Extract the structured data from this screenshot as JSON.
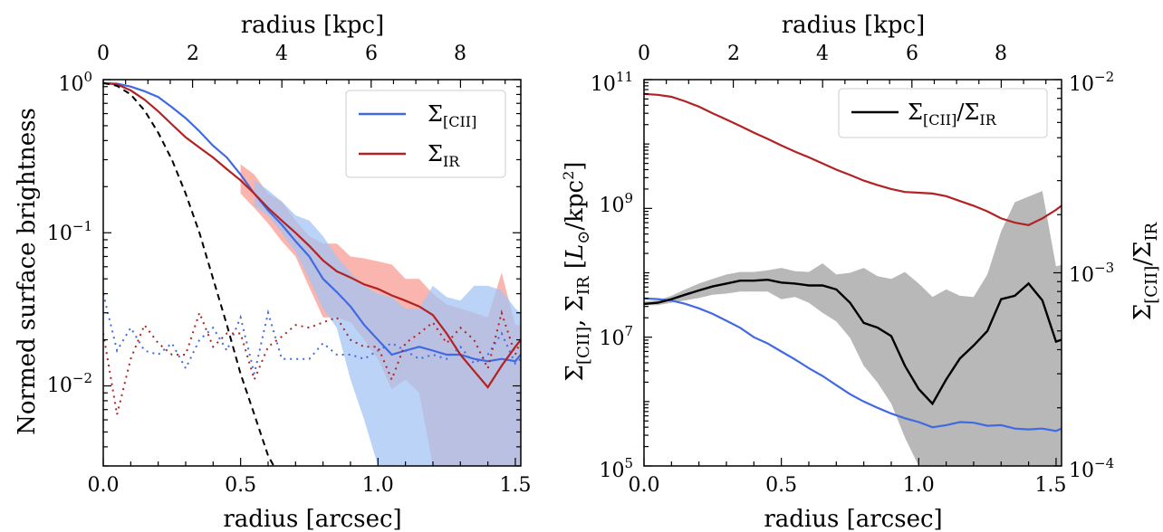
{
  "colors": {
    "cii": "#4169e1",
    "ir": "#b22222",
    "cii_band": "#a3c4f3",
    "ir_band": "#f8a8a0",
    "overlap_band": "#9c9ccf",
    "ratio": "#000000",
    "ratio_band": "#b8b8b8",
    "psf": "#000000"
  },
  "chart_data": [
    {
      "type": "line",
      "xlabel": "radius [arcsec]",
      "top_xlabel": "radius [kpc]",
      "ylabel": "Normed surface brightness",
      "xlim": [
        0,
        1.52
      ],
      "ylim": [
        0.003,
        1.0
      ],
      "yscale": "log",
      "grid": false,
      "legend_position": "top-right",
      "x_ticks": [
        "0.0",
        "0.5",
        "1.0",
        "1.5"
      ],
      "top_x_ticks": [
        "0",
        "2",
        "4",
        "6",
        "8"
      ],
      "y_ticks": [
        "10^0",
        "10^-1",
        "10^-2"
      ],
      "series": [
        {
          "name": "Σ[CII]",
          "style": "solid",
          "color_key": "cii",
          "x": [
            0.0,
            0.05,
            0.1,
            0.15,
            0.2,
            0.25,
            0.3,
            0.35,
            0.4,
            0.45,
            0.5,
            0.55,
            0.6,
            0.65,
            0.7,
            0.75,
            0.8,
            0.85,
            0.9,
            0.95,
            1.0,
            1.05,
            1.1,
            1.15,
            1.2,
            1.25,
            1.3,
            1.35,
            1.4,
            1.45,
            1.5,
            1.52
          ],
          "y": [
            0.95,
            0.94,
            0.9,
            0.84,
            0.77,
            0.66,
            0.56,
            0.46,
            0.37,
            0.31,
            0.24,
            0.18,
            0.14,
            0.113,
            0.088,
            0.07,
            0.05,
            0.041,
            0.033,
            0.025,
            0.02,
            0.016,
            0.017,
            0.018,
            0.017,
            0.016,
            0.016,
            0.015,
            0.0145,
            0.015,
            0.0145,
            0.016
          ]
        },
        {
          "name": "ΣIR",
          "style": "solid",
          "color_key": "ir",
          "x": [
            0.0,
            0.05,
            0.1,
            0.15,
            0.2,
            0.25,
            0.3,
            0.35,
            0.4,
            0.45,
            0.5,
            0.55,
            0.6,
            0.65,
            0.7,
            0.75,
            0.8,
            0.85,
            0.9,
            0.95,
            1.0,
            1.05,
            1.1,
            1.15,
            1.2,
            1.25,
            1.3,
            1.35,
            1.4,
            1.45,
            1.5,
            1.52
          ],
          "y": [
            0.95,
            0.93,
            0.85,
            0.74,
            0.62,
            0.51,
            0.42,
            0.36,
            0.31,
            0.26,
            0.22,
            0.18,
            0.145,
            0.12,
            0.1,
            0.082,
            0.066,
            0.056,
            0.051,
            0.046,
            0.043,
            0.039,
            0.036,
            0.033,
            0.029,
            0.022,
            0.016,
            0.0125,
            0.0098,
            0.0135,
            0.018,
            0.02
          ]
        },
        {
          "name": "",
          "style": "dotted",
          "color_key": "cii",
          "x": [
            0.0,
            0.05,
            0.1,
            0.15,
            0.2,
            0.25,
            0.3,
            0.35,
            0.4,
            0.45,
            0.5,
            0.55,
            0.6,
            0.65,
            0.7,
            0.75,
            0.8,
            0.85,
            0.9,
            0.95,
            1.0,
            1.05,
            1.1,
            1.15,
            1.2,
            1.25,
            1.3,
            1.35,
            1.4,
            1.45,
            1.5,
            1.52
          ],
          "y": [
            0.04,
            0.017,
            0.024,
            0.017,
            0.016,
            0.019,
            0.013,
            0.02,
            0.024,
            0.017,
            0.028,
            0.012,
            0.03,
            0.015,
            0.015,
            0.015,
            0.019,
            0.016,
            0.016,
            0.015,
            0.017,
            0.019,
            0.017,
            0.015,
            0.016,
            0.015,
            0.018,
            0.014,
            0.016,
            0.022,
            0.014,
            0.015
          ]
        },
        {
          "name": "",
          "style": "dotted",
          "color_key": "ir",
          "x": [
            0.0,
            0.05,
            0.1,
            0.15,
            0.2,
            0.25,
            0.3,
            0.35,
            0.4,
            0.45,
            0.5,
            0.55,
            0.6,
            0.65,
            0.7,
            0.75,
            0.8,
            0.85,
            0.9,
            0.95,
            1.0,
            1.05,
            1.1,
            1.15,
            1.2,
            1.25,
            1.3,
            1.35,
            1.4,
            1.45,
            1.5,
            1.52
          ],
          "y": [
            0.022,
            0.0065,
            0.015,
            0.025,
            0.019,
            0.016,
            0.016,
            0.03,
            0.018,
            0.022,
            0.022,
            0.011,
            0.018,
            0.021,
            0.025,
            0.024,
            0.026,
            0.028,
            0.02,
            0.018,
            0.018,
            0.011,
            0.019,
            0.022,
            0.026,
            0.019,
            0.024,
            0.02,
            0.013,
            0.03,
            0.016,
            0.02
          ]
        },
        {
          "name": "",
          "style": "dashed",
          "color_key": "psf",
          "x": [
            0.0,
            0.05,
            0.1,
            0.15,
            0.2,
            0.25,
            0.3,
            0.35,
            0.4,
            0.45,
            0.5,
            0.55,
            0.6,
            0.63
          ],
          "y": [
            0.95,
            0.91,
            0.8,
            0.63,
            0.45,
            0.3,
            0.18,
            0.1,
            0.05,
            0.025,
            0.012,
            0.0065,
            0.0035,
            0.0028
          ]
        }
      ],
      "bands": [
        {
          "color_key": "ir_band",
          "x": [
            0.5,
            0.55,
            0.6,
            0.65,
            0.7,
            0.75,
            0.8,
            0.85,
            0.9,
            0.95,
            1.0,
            1.05,
            1.1,
            1.15,
            1.2,
            1.25,
            1.3,
            1.35,
            1.4,
            1.45,
            1.5,
            1.52
          ],
          "upper": [
            0.28,
            0.24,
            0.18,
            0.16,
            0.12,
            0.095,
            0.085,
            0.085,
            0.07,
            0.068,
            0.065,
            0.062,
            0.05,
            0.05,
            0.04,
            0.034,
            0.032,
            0.03,
            0.028,
            0.055,
            0.025,
            0.025
          ],
          "lower": [
            0.18,
            0.145,
            0.115,
            0.088,
            0.07,
            0.044,
            0.028,
            0.028,
            0.026,
            0.02,
            0.015,
            0.0095,
            0.011,
            0.009,
            0.003,
            0.003,
            0.003,
            0.003,
            0.003,
            0.003,
            0.003,
            0.003
          ]
        },
        {
          "color_key": "cii_band",
          "x": [
            0.55,
            0.6,
            0.65,
            0.7,
            0.75,
            0.8,
            0.85,
            0.9,
            0.95,
            1.0,
            1.05,
            1.1,
            1.15,
            1.2,
            1.25,
            1.3,
            1.35,
            1.4,
            1.45,
            1.5,
            1.52
          ],
          "upper": [
            0.22,
            0.19,
            0.16,
            0.13,
            0.12,
            0.095,
            0.07,
            0.055,
            0.045,
            0.04,
            0.038,
            0.032,
            0.032,
            0.045,
            0.038,
            0.036,
            0.045,
            0.045,
            0.042,
            0.032,
            0.03
          ],
          "lower": [
            0.15,
            0.13,
            0.1,
            0.075,
            0.05,
            0.032,
            0.024,
            0.011,
            0.006,
            0.003,
            0.003,
            0.003,
            0.003,
            0.003,
            0.003,
            0.003,
            0.003,
            0.003,
            0.003,
            0.003,
            0.003
          ]
        }
      ],
      "legend": [
        {
          "label": "Σ[CII]",
          "color_key": "cii"
        },
        {
          "label": "ΣIR",
          "color_key": "ir"
        }
      ]
    },
    {
      "type": "line",
      "xlabel": "radius [arcsec]",
      "top_xlabel": "radius [kpc]",
      "ylabel": "Σ[CII], ΣIR [L⊙/kpc²]",
      "ylabel_right": "Σ[CII]/ΣIR",
      "xlim": [
        0,
        1.52
      ],
      "ylim": [
        100000,
        100000000000
      ],
      "yscale": "log",
      "ylim_right": [
        0.0001,
        0.01
      ],
      "yscale_right": "log",
      "grid": false,
      "legend_position": "top-right",
      "x_ticks": [
        "0.0",
        "0.5",
        "1.0",
        "1.5"
      ],
      "top_x_ticks": [
        "0",
        "2",
        "4",
        "6",
        "8"
      ],
      "y_ticks": [
        "10^11",
        "10^9",
        "10^7",
        "10^5"
      ],
      "y_ticks_right": [
        "10^-2",
        "10^-3",
        "10^-4"
      ],
      "series": [
        {
          "name": "",
          "axis": "left",
          "color_key": "ir",
          "x": [
            0.0,
            0.05,
            0.1,
            0.15,
            0.2,
            0.25,
            0.3,
            0.35,
            0.4,
            0.45,
            0.5,
            0.55,
            0.6,
            0.65,
            0.7,
            0.75,
            0.8,
            0.85,
            0.9,
            0.95,
            1.0,
            1.05,
            1.1,
            1.15,
            1.2,
            1.25,
            1.3,
            1.35,
            1.4,
            1.45,
            1.5,
            1.52
          ],
          "y": [
            60000000000,
            58000000000,
            54000000000,
            46000000000,
            38000000000,
            30000000000,
            24000000000,
            19000000000,
            15000000000,
            12000000000,
            9500000000,
            7600000000,
            6200000000,
            5000000000,
            4000000000,
            3300000000,
            2700000000,
            2300000000,
            2000000000,
            1800000000,
            1750000000,
            1700000000,
            1550000000,
            1300000000,
            1100000000,
            900000000,
            700000000,
            600000000,
            550000000,
            700000000,
            950000000,
            1100000000
          ]
        },
        {
          "name": "",
          "axis": "left",
          "color_key": "cii",
          "x": [
            0.0,
            0.05,
            0.1,
            0.15,
            0.2,
            0.25,
            0.3,
            0.35,
            0.4,
            0.45,
            0.5,
            0.55,
            0.6,
            0.65,
            0.7,
            0.75,
            0.8,
            0.85,
            0.9,
            0.95,
            1.0,
            1.05,
            1.1,
            1.15,
            1.2,
            1.25,
            1.3,
            1.35,
            1.4,
            1.45,
            1.5,
            1.52
          ],
          "y": [
            40000000,
            39000000,
            37000000,
            33000000,
            28000000,
            23000000,
            18000000,
            14000000,
            10000000,
            8000000,
            6000000,
            4500000,
            3300000,
            2500000,
            1800000,
            1300000,
            1000000,
            800000,
            650000,
            550000,
            480000,
            400000,
            430000,
            480000,
            470000,
            420000,
            430000,
            380000,
            370000,
            380000,
            350000,
            380000
          ]
        },
        {
          "name": "Σ[CII]/ΣIR",
          "axis": "right",
          "color_key": "ratio",
          "x": [
            0.0,
            0.05,
            0.1,
            0.15,
            0.2,
            0.25,
            0.3,
            0.35,
            0.4,
            0.45,
            0.5,
            0.55,
            0.6,
            0.65,
            0.7,
            0.75,
            0.8,
            0.85,
            0.9,
            0.95,
            1.0,
            1.05,
            1.1,
            1.15,
            1.2,
            1.25,
            1.3,
            1.35,
            1.4,
            1.45,
            1.5,
            1.52
          ],
          "y": [
            0.00069,
            0.0007,
            0.00073,
            0.00077,
            0.00081,
            0.00085,
            0.00088,
            0.00091,
            0.00091,
            0.00092,
            0.00089,
            0.00088,
            0.00086,
            0.00086,
            0.00082,
            0.0007,
            0.00055,
            0.00052,
            0.00047,
            0.00033,
            0.00025,
            0.00021,
            0.00028,
            0.00036,
            0.00042,
            0.0005,
            0.00073,
            0.00076,
            0.00088,
            0.00072,
            0.00044,
            0.00045
          ]
        }
      ],
      "bands": [
        {
          "color_key": "ratio_band",
          "axis": "right",
          "x": [
            0.0,
            0.05,
            0.1,
            0.15,
            0.2,
            0.25,
            0.3,
            0.35,
            0.4,
            0.45,
            0.5,
            0.55,
            0.6,
            0.65,
            0.7,
            0.75,
            0.8,
            0.85,
            0.9,
            0.95,
            1.0,
            1.05,
            1.1,
            1.15,
            1.2,
            1.25,
            1.3,
            1.35,
            1.4,
            1.45,
            1.5,
            1.52
          ],
          "upper": [
            0.00071,
            0.00072,
            0.00076,
            0.00082,
            0.00088,
            0.00093,
            0.00098,
            0.00101,
            0.00101,
            0.00103,
            0.00106,
            0.00102,
            0.00101,
            0.00112,
            0.00098,
            0.001,
            0.00106,
            0.00096,
            0.00093,
            0.00101,
            0.00088,
            0.00075,
            0.00082,
            0.00076,
            0.00075,
            0.00098,
            0.00164,
            0.00232,
            0.00248,
            0.00265,
            0.00108,
            0.0011
          ],
          "lower": [
            0.00068,
            0.00068,
            0.0007,
            0.00072,
            0.00074,
            0.00077,
            0.00078,
            0.0008,
            0.0008,
            0.0008,
            0.00073,
            0.00075,
            0.0007,
            0.00062,
            0.00056,
            0.00046,
            0.00033,
            0.00027,
            0.00021,
            0.00014,
            0.0001,
            0.0001,
            0.0001,
            0.0001,
            0.0001,
            0.0001,
            0.0001,
            0.0001,
            0.0001,
            0.0001,
            0.0001,
            0.0001
          ]
        }
      ],
      "legend": [
        {
          "label": "Σ[CII]/ΣIR",
          "color_key": "ratio"
        }
      ]
    }
  ]
}
